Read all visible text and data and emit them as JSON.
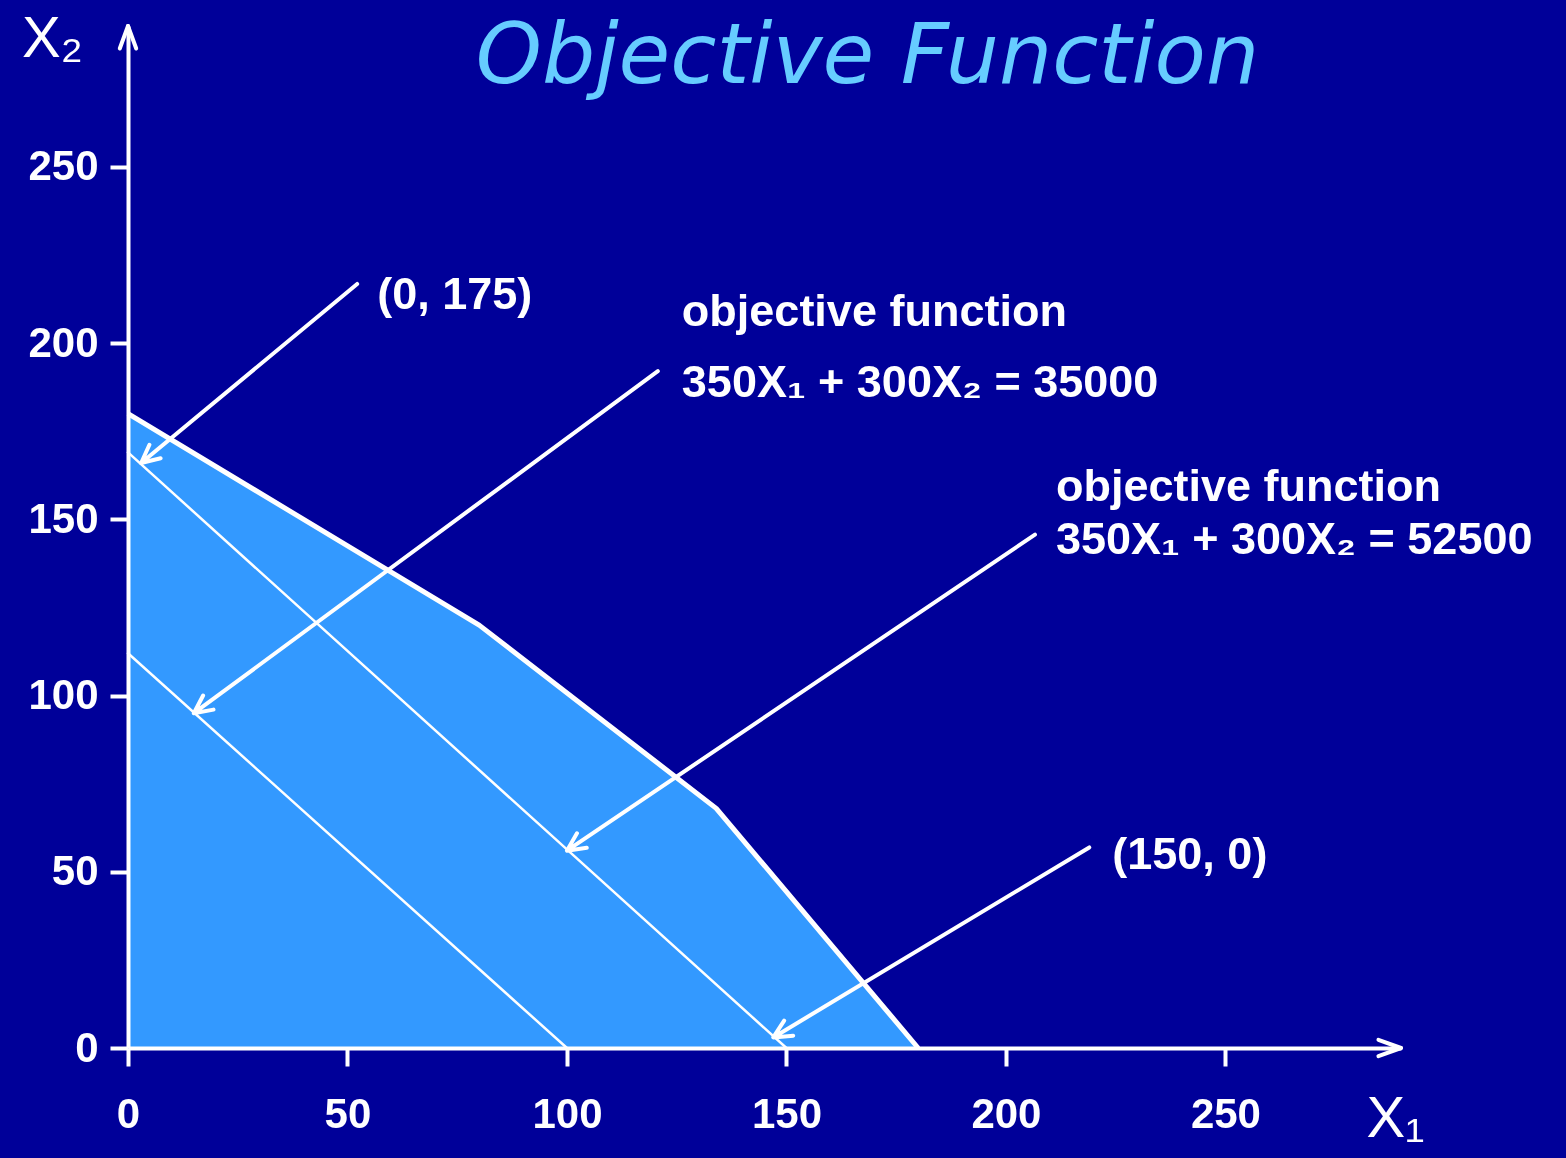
{
  "chart_data": {
    "type": "line",
    "title": "Objective Function",
    "xlabel": "X₁",
    "ylabel": "X₂",
    "xlim": [
      0,
      290
    ],
    "ylim": [
      0,
      290
    ],
    "xticks": [
      0,
      50,
      100,
      150,
      200,
      250
    ],
    "yticks": [
      0,
      50,
      100,
      150,
      200,
      250
    ],
    "series": [
      {
        "type": "area",
        "color": "#3399ff",
        "x": [
          0,
          80,
          134,
          180
        ],
        "values": [
          180,
          120,
          68,
          0
        ]
      },
      {
        "color": "#ffffff",
        "x": [
          0,
          100
        ],
        "values": [
          112,
          0
        ]
      },
      {
        "color": "#ffffff",
        "x": [
          0,
          150
        ],
        "values": [
          169,
          0
        ]
      }
    ],
    "annotations": [
      {
        "text": "(0, 175)",
        "x": 3,
        "y": 166
      },
      {
        "text": "objective function\n350X₁ + 300X₂ = 35000",
        "x": 15,
        "y": 95
      },
      {
        "text": "objective function\n350X₁ + 300X₂ = 52500",
        "x": 100,
        "y": 56
      },
      {
        "text": "(150, 0)",
        "x": 147,
        "y": 3
      }
    ]
  }
}
